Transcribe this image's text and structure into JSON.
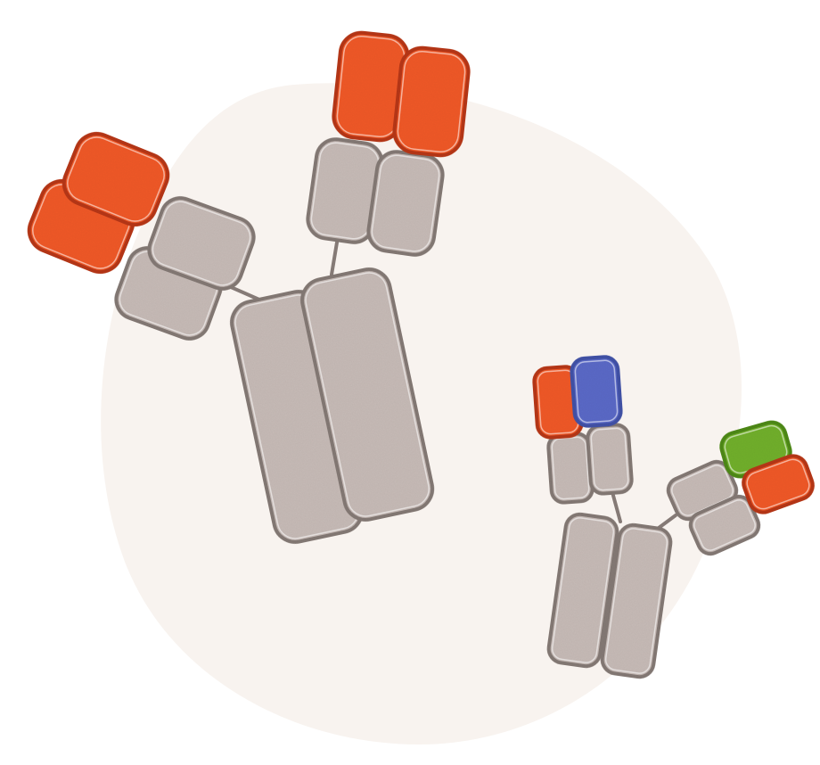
{
  "colors": {
    "backdrop": "#f8f3ef",
    "constant_fill": "#c8bcb8",
    "constant_stroke": "#857a76",
    "variable_red_fill": "#f15a2b",
    "variable_red_stroke": "#b8391b",
    "variable_blue_fill": "#5b6ac8",
    "variable_blue_stroke": "#4352a8",
    "variable_green_fill": "#72b02f",
    "variable_green_stroke": "#4f8a1b",
    "hinge": "#857a76",
    "highlight": "#ffffff"
  },
  "figure": {
    "backdrop": "blob-backdrop",
    "molecules": [
      {
        "id": "conventional-antibody",
        "variable_domains": "monospecific",
        "variable_color": "red"
      },
      {
        "id": "bispecific-antibody",
        "variable_domains": "bispecific",
        "variable_colors": [
          "red",
          "blue",
          "green",
          "red"
        ]
      }
    ]
  }
}
